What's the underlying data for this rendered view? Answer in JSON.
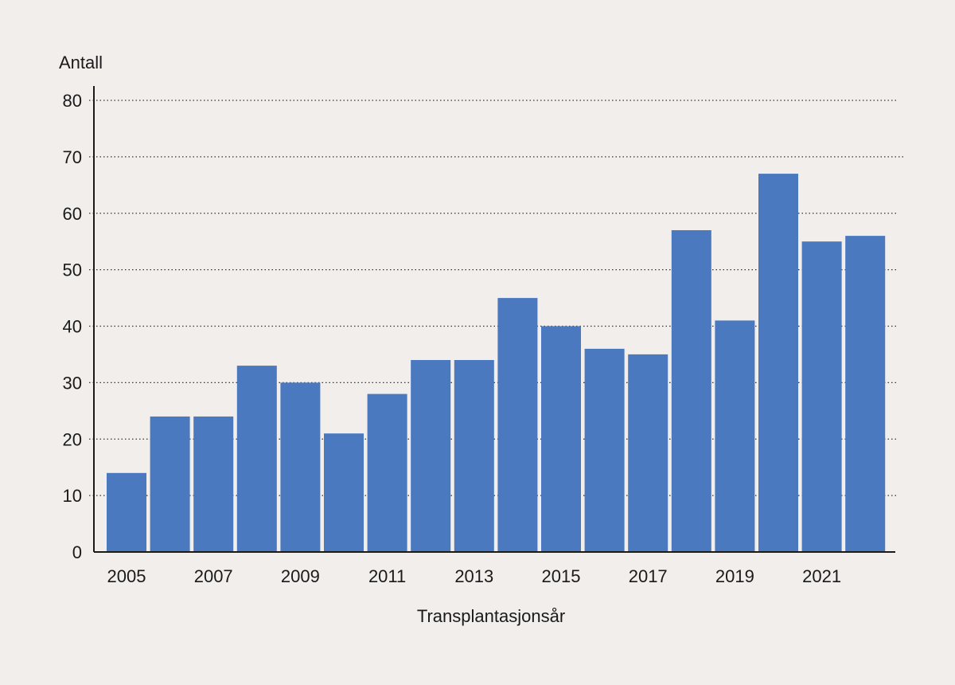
{
  "chart_data": {
    "type": "bar",
    "ylabel": "Antall",
    "xlabel": "Transplantasjonsår",
    "categories": [
      "2005",
      "2006",
      "2007",
      "2008",
      "2009",
      "2010",
      "2011",
      "2012",
      "2013",
      "2014",
      "2015",
      "2016",
      "2017",
      "2018",
      "2019",
      "2020",
      "2021",
      "2022"
    ],
    "x_tick_labels": [
      "2005",
      "2007",
      "2009",
      "2011",
      "2013",
      "2015",
      "2017",
      "2019",
      "2021"
    ],
    "values": [
      14,
      24,
      24,
      33,
      30,
      21,
      28,
      34,
      34,
      45,
      40,
      36,
      35,
      57,
      41,
      67,
      55,
      56
    ],
    "ylim": [
      0,
      80
    ],
    "y_ticks": [
      0,
      10,
      20,
      30,
      40,
      50,
      60,
      70,
      80
    ],
    "grid": "horizontal dotted",
    "bar_color": "#4a79bf"
  }
}
